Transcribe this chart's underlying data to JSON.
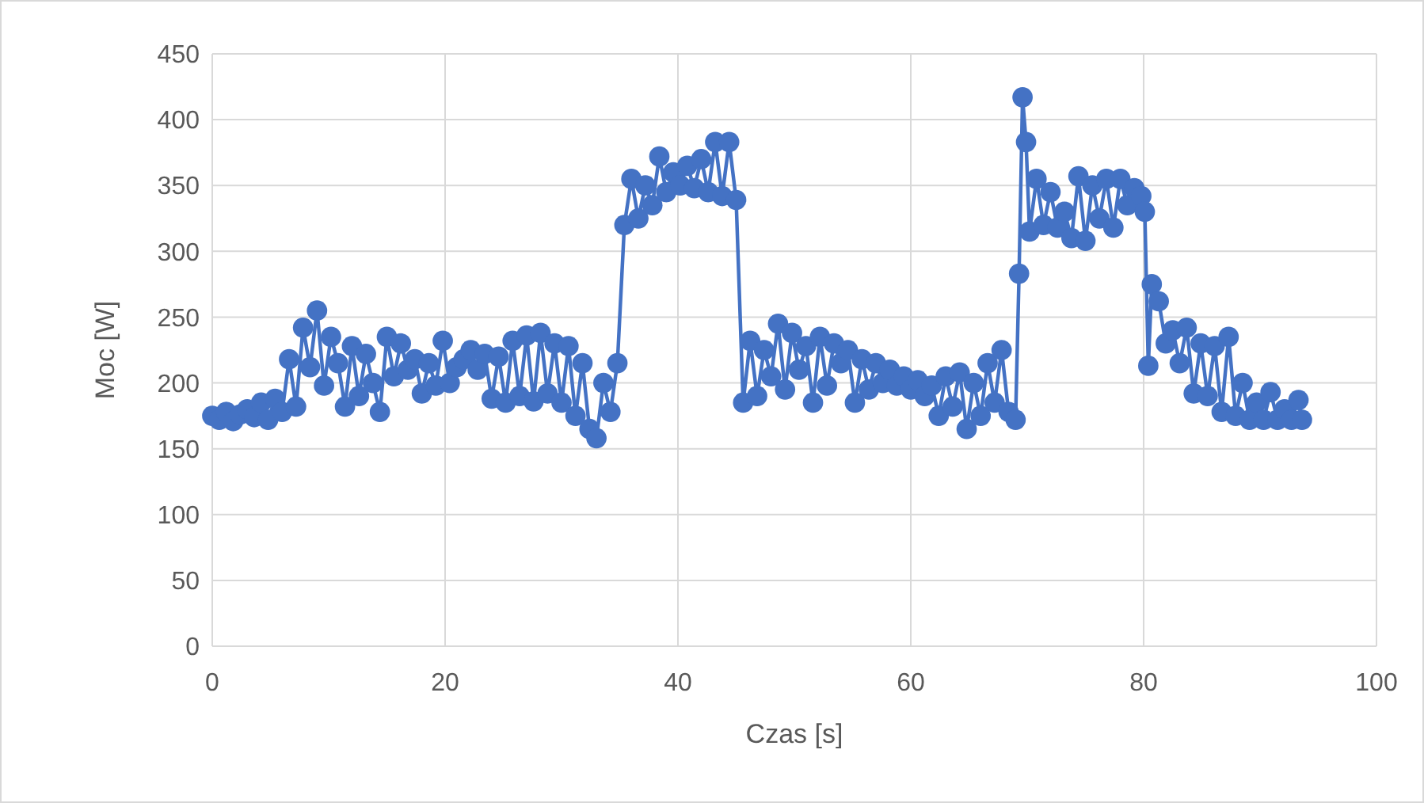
{
  "chart_data": {
    "type": "line",
    "xlabel": "Czas [s]",
    "ylabel": "Moc [W]",
    "xlim": [
      0,
      100
    ],
    "xticks": [
      0,
      20,
      40,
      60,
      80,
      100
    ],
    "ylim": [
      0,
      450
    ],
    "yticks": [
      0,
      50,
      100,
      150,
      200,
      250,
      300,
      350,
      400,
      450
    ],
    "grid": true,
    "marker": "circle",
    "line_style": "solid",
    "series": [
      {
        "color": "#4472c4",
        "x": [
          0,
          0.6,
          1.2,
          1.8,
          2.4,
          3,
          3.6,
          4.2,
          4.8,
          5.4,
          6,
          6.6,
          7.2,
          7.8,
          8.4,
          9,
          9.6,
          10.2,
          10.8,
          11.4,
          12,
          12.6,
          13.2,
          13.8,
          14.4,
          15,
          15.6,
          16.2,
          16.8,
          17.4,
          18,
          18.6,
          19.2,
          19.8,
          20.4,
          21,
          21.6,
          22.2,
          22.8,
          23.4,
          24,
          24.6,
          25.2,
          25.8,
          26.4,
          27,
          27.6,
          28.2,
          28.8,
          29.4,
          30,
          30.6,
          31.2,
          31.8,
          32.4,
          33,
          33.6,
          34.2,
          34.8,
          35.4,
          36,
          36.6,
          37.2,
          37.8,
          38.4,
          39,
          39.6,
          40.2,
          40.8,
          41.4,
          42,
          42.6,
          43.2,
          43.8,
          44.4,
          45,
          45.6,
          46.2,
          46.8,
          47.4,
          48,
          48.6,
          49.2,
          49.8,
          50.4,
          51,
          51.6,
          52.2,
          52.8,
          53.4,
          54,
          54.6,
          55.2,
          55.8,
          56.4,
          57,
          57.6,
          58.2,
          58.8,
          59.4,
          60,
          60.6,
          61.2,
          61.8,
          62.4,
          63,
          63.6,
          64.2,
          64.8,
          65.4,
          66,
          66.6,
          67.2,
          67.8,
          68.4,
          69,
          69.3,
          69.6,
          69.9,
          70.2,
          70.8,
          71.4,
          72,
          72.6,
          73.2,
          73.8,
          74.4,
          75,
          75.6,
          76.2,
          76.8,
          77.4,
          78,
          78.6,
          79.2,
          79.8,
          80.1,
          80.4,
          80.7,
          81.3,
          81.9,
          82.5,
          83.1,
          83.7,
          84.3,
          84.9,
          85.5,
          86.1,
          86.7,
          87.3,
          87.9,
          88.5,
          89.1,
          89.7,
          90.3,
          90.9,
          91.5,
          92.1,
          92.7,
          93.3,
          93.6
        ],
        "values": [
          175,
          172,
          178,
          171,
          176,
          180,
          174,
          185,
          172,
          188,
          178,
          218,
          182,
          242,
          212,
          255,
          198,
          235,
          215,
          182,
          228,
          190,
          222,
          200,
          178,
          235,
          205,
          230,
          210,
          218,
          192,
          215,
          198,
          232,
          200,
          212,
          218,
          225,
          210,
          222,
          188,
          220,
          185,
          232,
          190,
          236,
          186,
          238,
          192,
          230,
          185,
          228,
          175,
          215,
          165,
          158,
          200,
          178,
          215,
          320,
          355,
          325,
          350,
          335,
          372,
          345,
          360,
          350,
          365,
          348,
          370,
          345,
          383,
          342,
          383,
          339,
          185,
          232,
          190,
          225,
          205,
          245,
          195,
          238,
          210,
          228,
          185,
          235,
          198,
          230,
          215,
          225,
          185,
          218,
          195,
          215,
          200,
          210,
          198,
          205,
          195,
          202,
          190,
          198,
          175,
          205,
          182,
          208,
          165,
          200,
          175,
          215,
          185,
          225,
          178,
          172,
          283,
          417,
          383,
          315,
          355,
          320,
          345,
          318,
          330,
          310,
          357,
          308,
          350,
          325,
          355,
          318,
          355,
          335,
          348,
          342,
          330,
          213,
          275,
          262,
          230,
          240,
          215,
          242,
          192,
          230,
          190,
          228,
          178,
          235,
          175,
          200,
          172,
          185,
          172,
          193,
          172,
          180,
          172,
          187,
          172
        ]
      }
    ]
  }
}
